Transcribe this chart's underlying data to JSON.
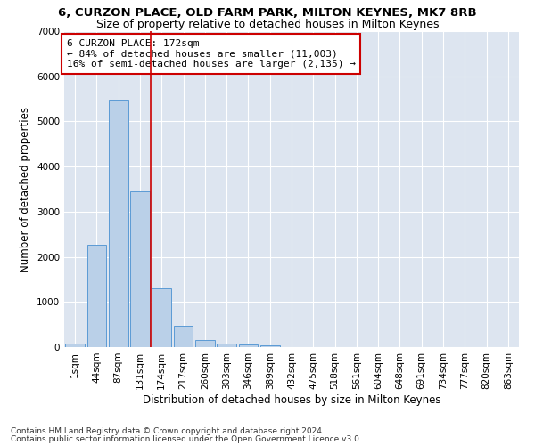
{
  "title_line1": "6, CURZON PLACE, OLD FARM PARK, MILTON KEYNES, MK7 8RB",
  "title_line2": "Size of property relative to detached houses in Milton Keynes",
  "xlabel": "Distribution of detached houses by size in Milton Keynes",
  "ylabel": "Number of detached properties",
  "bar_labels": [
    "1sqm",
    "44sqm",
    "87sqm",
    "131sqm",
    "174sqm",
    "217sqm",
    "260sqm",
    "303sqm",
    "346sqm",
    "389sqm",
    "432sqm",
    "475sqm",
    "518sqm",
    "561sqm",
    "604sqm",
    "648sqm",
    "691sqm",
    "734sqm",
    "777sqm",
    "820sqm",
    "863sqm"
  ],
  "bar_values": [
    75,
    2275,
    5475,
    3450,
    1310,
    475,
    155,
    85,
    55,
    35,
    0,
    0,
    0,
    0,
    0,
    0,
    0,
    0,
    0,
    0,
    0
  ],
  "bar_color": "#bad0e8",
  "bar_edge_color": "#5b9bd5",
  "vline_x": 3.5,
  "vline_color": "#cc0000",
  "annotation_text": "6 CURZON PLACE: 172sqm\n← 84% of detached houses are smaller (11,003)\n16% of semi-detached houses are larger (2,135) →",
  "annotation_box_color": "#ffffff",
  "annotation_box_edge": "#cc0000",
  "ylim": [
    0,
    7000
  ],
  "yticks": [
    0,
    1000,
    2000,
    3000,
    4000,
    5000,
    6000,
    7000
  ],
  "background_color": "#dde5f0",
  "grid_color": "#ffffff",
  "footer_line1": "Contains HM Land Registry data © Crown copyright and database right 2024.",
  "footer_line2": "Contains public sector information licensed under the Open Government Licence v3.0.",
  "title_fontsize": 9.5,
  "subtitle_fontsize": 9,
  "axis_label_fontsize": 8.5,
  "tick_fontsize": 7.5,
  "annotation_fontsize": 8
}
